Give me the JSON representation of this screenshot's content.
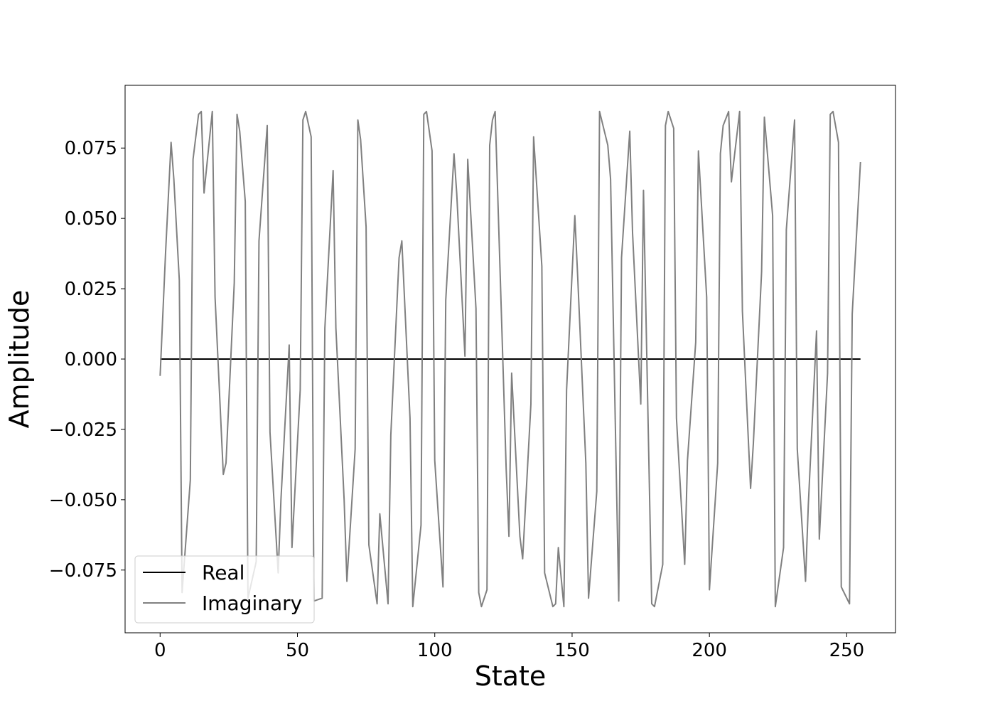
{
  "chart_data": {
    "type": "line",
    "title": "",
    "xlabel": "State",
    "ylabel": "Amplitude",
    "xlim": [
      -12.75,
      267.75
    ],
    "ylim": [
      -0.0973,
      0.0973
    ],
    "xticks": [
      0,
      50,
      100,
      150,
      200,
      250
    ],
    "xtick_labels": [
      "0",
      "50",
      "100",
      "150",
      "200",
      "250"
    ],
    "yticks": [
      0.075,
      0.05,
      0.025,
      0.0,
      -0.025,
      -0.05,
      -0.075
    ],
    "ytick_labels": [
      "0.075",
      "0.050",
      "0.025",
      "0.000",
      "−0.025",
      "−0.050",
      "−0.075"
    ],
    "grid": false,
    "legend_position": "lower-left",
    "series": [
      {
        "name": "Real",
        "color": "#000000",
        "x": [
          0,
          255
        ],
        "values": [
          0.0,
          0.0
        ]
      },
      {
        "name": "Imaginary",
        "color": "#808080",
        "x": [
          0,
          2,
          4,
          5,
          7,
          8,
          11,
          12,
          14,
          15,
          16,
          19,
          20,
          23,
          24,
          27,
          28,
          29,
          31,
          32,
          35,
          36,
          39,
          40,
          43,
          44,
          47,
          48,
          51,
          52,
          53,
          55,
          56,
          59,
          60,
          63,
          64,
          67,
          68,
          71,
          72,
          73,
          75,
          76,
          79,
          80,
          83,
          84,
          87,
          88,
          91,
          92,
          95,
          96,
          97,
          99,
          100,
          103,
          104,
          107,
          108,
          111,
          112,
          115,
          116,
          117,
          119,
          120,
          121,
          122,
          125,
          126,
          127,
          128,
          131,
          132,
          135,
          136,
          139,
          140,
          143,
          144,
          145,
          147,
          148,
          151,
          152,
          155,
          156,
          159,
          160,
          163,
          164,
          167,
          168,
          171,
          172,
          175,
          176,
          179,
          180,
          183,
          184,
          185,
          187,
          188,
          191,
          192,
          195,
          196,
          199,
          200,
          203,
          204,
          205,
          207,
          208,
          211,
          212,
          215,
          216,
          219,
          220,
          223,
          224,
          227,
          228,
          231,
          232,
          235,
          236,
          239,
          240,
          243,
          244,
          245,
          247,
          248,
          251,
          252,
          255
        ],
        "values": [
          -0.006,
          0.038,
          0.077,
          0.064,
          0.028,
          -0.083,
          -0.043,
          0.071,
          0.087,
          0.088,
          0.059,
          0.088,
          0.022,
          -0.041,
          -0.037,
          0.027,
          0.087,
          0.081,
          0.056,
          -0.085,
          -0.072,
          0.042,
          0.083,
          -0.026,
          -0.076,
          -0.05,
          0.005,
          -0.067,
          -0.011,
          0.085,
          0.088,
          0.079,
          -0.086,
          -0.085,
          0.011,
          0.067,
          0.011,
          -0.05,
          -0.079,
          -0.032,
          0.085,
          0.078,
          0.047,
          -0.066,
          -0.087,
          -0.055,
          -0.087,
          -0.027,
          0.036,
          0.042,
          -0.021,
          -0.088,
          -0.059,
          0.087,
          0.088,
          0.074,
          -0.036,
          -0.081,
          0.021,
          0.073,
          0.059,
          0.001,
          0.071,
          0.018,
          -0.083,
          -0.088,
          -0.082,
          0.076,
          0.085,
          0.088,
          -0.007,
          -0.039,
          -0.063,
          -0.005,
          -0.063,
          -0.071,
          -0.016,
          0.079,
          0.033,
          -0.076,
          -0.088,
          -0.087,
          -0.067,
          -0.088,
          -0.011,
          0.051,
          0.03,
          -0.037,
          -0.085,
          -0.047,
          0.088,
          0.076,
          0.064,
          -0.086,
          0.036,
          0.081,
          0.045,
          -0.016,
          0.06,
          -0.087,
          -0.088,
          -0.073,
          0.083,
          0.088,
          0.082,
          -0.021,
          -0.073,
          -0.036,
          0.006,
          0.074,
          0.022,
          -0.082,
          -0.037,
          0.073,
          0.083,
          0.088,
          0.063,
          0.088,
          0.017,
          -0.046,
          -0.03,
          0.031,
          0.086,
          0.051,
          -0.088,
          -0.067,
          0.046,
          0.085,
          -0.032,
          -0.079,
          -0.052,
          0.01,
          -0.064,
          -0.005,
          0.087,
          0.088,
          0.077,
          -0.081,
          -0.087,
          0.016,
          0.07
        ]
      }
    ]
  }
}
